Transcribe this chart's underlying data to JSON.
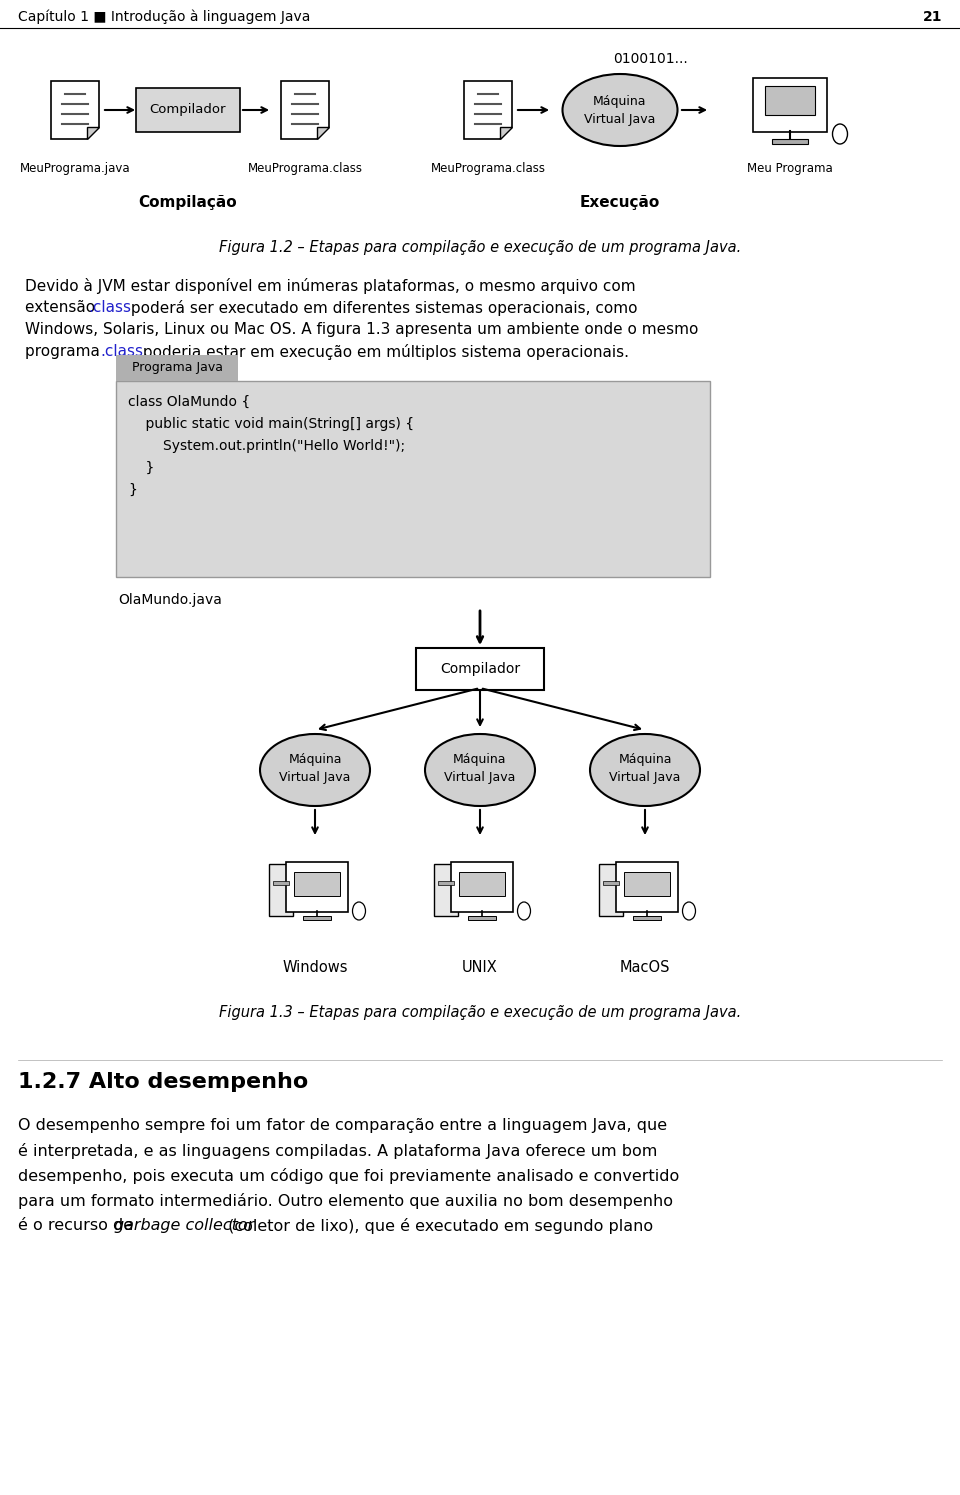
{
  "bg_color": "#ffffff",
  "header_text": "Capítulo 1 ■ Introdução à linguagem Java",
  "page_number": "21",
  "fig1_title_label": "0100101...",
  "fig1_compilador": "Compilador",
  "fig1_compilacao": "Compilação",
  "fig1_execucao": "Execução",
  "fig1_caption": "Figura 1.2 – Etapas para compilação e execução de um programa Java.",
  "fig1_label0": "MeuPrograma.java",
  "fig1_label1": "MeuPrograma.class",
  "fig1_label2": "MeuPrograma.class",
  "fig1_label3": "Meu Programa",
  "para1_line1": "Devido à JVM estar disponível em inúmeras plataformas, o mesmo arquivo com",
  "para1_line2_pre": "extensão ",
  "para1_line2_code": ".class",
  "para1_line2_post": " poderá ser executado em diferentes sistemas operacionais, como",
  "para1_line3": "Windows, Solaris, Linux ou Mac OS. A figura 1.3 apresenta um ambiente onde o mesmo",
  "para1_line4_pre": "programa ",
  "para1_line4_code": ".class",
  "para1_line4_post": " poderia estar em execução em múltiplos sistema operacionais.",
  "code_tab_label": "Programa Java",
  "code_lines": [
    "class OlaMundo {",
    "    public static void main(String[] args) {",
    "        System.out.println(\"Hello World!\");",
    "    }",
    "}"
  ],
  "code_filename": "OlaMundo.java",
  "fig2_compilador": "Compilador",
  "fig2_os_labels": [
    "Windows",
    "UNIX",
    "MacOS"
  ],
  "fig2_caption": "Figura 1.3 – Etapas para compilação e execução de um programa Java.",
  "section_heading": "1.2.7 Alto desempenho",
  "body_line0": "O desempenho sempre foi um fator de comparação entre a linguagem Java, que",
  "body_line1": "é interpretada, e as linguagens compiladas. A plataforma Java oferece um bom",
  "body_line2": "desempenho, pois executa um código que foi previamente analisado e convertido",
  "body_line3": "para um formato intermediário. Outro elemento que auxilia no bom desempenho",
  "body_line4_pre": "é o recurso de ",
  "body_line4_italic": "garbage collector",
  "body_line4_post": " (coletor de lixo), que é executado em segundo plano"
}
